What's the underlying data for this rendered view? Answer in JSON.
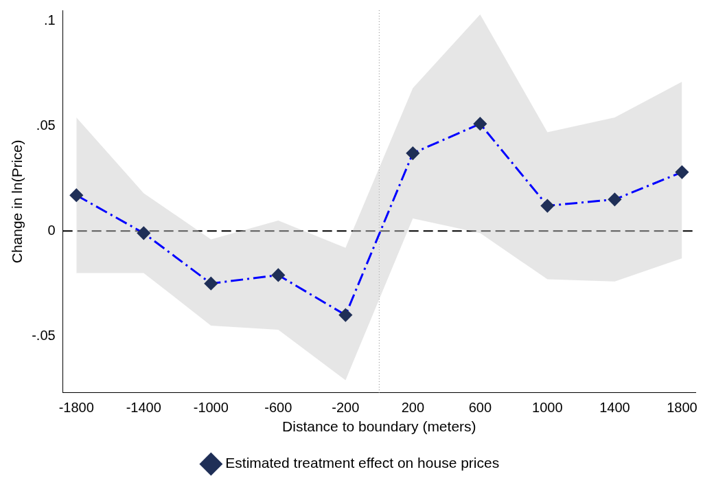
{
  "chart_data": {
    "type": "line",
    "xlabel": "Distance to boundary (meters)",
    "ylabel": "Change in ln(Price)",
    "x": [
      -1800,
      -1400,
      -1000,
      -600,
      -200,
      200,
      600,
      1000,
      1400,
      1800
    ],
    "series": [
      {
        "name": "Estimated treatment effect on house prices",
        "color": "#0000ff",
        "values": [
          0.017,
          -0.001,
          -0.025,
          -0.021,
          -0.04,
          0.037,
          0.051,
          0.012,
          0.015,
          0.028
        ],
        "lower": [
          -0.02,
          -0.02,
          -0.045,
          -0.047,
          -0.071,
          0.006,
          -0.001,
          -0.023,
          -0.024,
          -0.013
        ],
        "upper": [
          0.054,
          0.018,
          -0.004,
          0.005,
          -0.008,
          0.068,
          0.103,
          0.047,
          0.054,
          0.071
        ]
      }
    ],
    "xlim": [
      -1880,
      1880
    ],
    "xticks": [
      -1800,
      -1400,
      -1000,
      -600,
      -200,
      200,
      600,
      1000,
      1400,
      1800
    ],
    "ylim": [
      -0.077,
      0.105
    ],
    "yticks": [
      {
        "value": -0.05,
        "label": "-.05"
      },
      0,
      {
        "value": 0.05,
        "label": ".05"
      },
      {
        "value": 0.1,
        "label": ".1"
      }
    ],
    "ref_lines": [
      {
        "axis": "y",
        "value": 0,
        "color": "#000000",
        "line_style": "dashed"
      },
      {
        "axis": "x",
        "value": 0,
        "color": "#888888",
        "line_style": "dotted"
      }
    ],
    "grid": false,
    "legend": "bottom",
    "marker": "diamond",
    "line_style": "dashed"
  }
}
